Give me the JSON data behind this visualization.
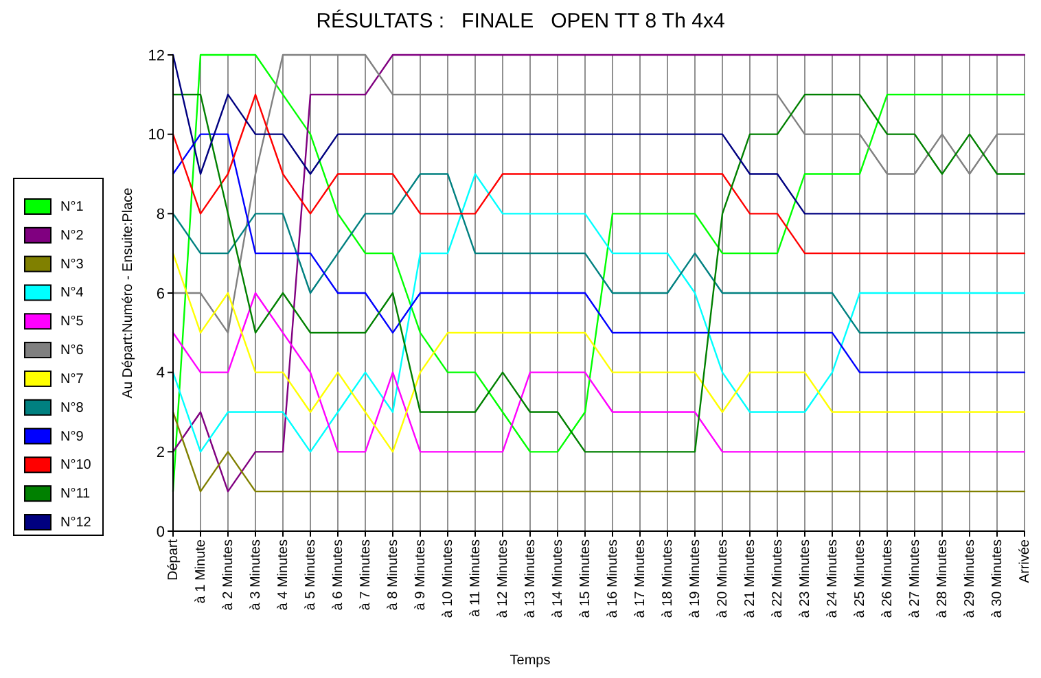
{
  "chart_data": {
    "type": "line",
    "title": "RÉSULTATS :   FINALE   OPEN TT 8 Th 4x4",
    "xlabel": "Temps",
    "ylabel": "Au Départ:Numéro - Ensuite:Place",
    "categories": [
      "Départ",
      "à 1 Minute",
      "à 2 Minutes",
      "à 3 Minutes",
      "à 4 Minutes",
      "à 5 Minutes",
      "à 6 Minutes",
      "à 7 Minutes",
      "à 8 Minutes",
      "à 9 Minutes",
      "à 10 Minutes",
      "à 11 Minutes",
      "à 12 Minutes",
      "à 13 Minutes",
      "à 14 Minutes",
      "à 15 Minutes",
      "à 16 Minutes",
      "à 17 Minutes",
      "à 18 Minutes",
      "à 19 Minutes",
      "à 20 Minutes",
      "à 21 Minutes",
      "à 22 Minutes",
      "à 23 Minutes",
      "à 24 Minutes",
      "à 25 Minutes",
      "à 26 Minutes",
      "à 27 Minutes",
      "à 28 Minutes",
      "à 29 Minutes",
      "à 30 Minutes",
      "Arrivée"
    ],
    "ylim": [
      0,
      12
    ],
    "yticks": [
      0,
      2,
      4,
      6,
      8,
      10,
      12
    ],
    "grid": "x",
    "legend": "left",
    "marker": "none",
    "line_style": "solid",
    "series": [
      {
        "name": "N°1",
        "color": "#00ff00",
        "values": [
          1,
          12,
          12,
          12,
          11,
          10,
          8,
          7,
          7,
          5,
          4,
          4,
          3,
          2,
          2,
          3,
          8,
          8,
          8,
          8,
          7,
          7,
          7,
          9,
          9,
          9,
          11,
          11,
          11,
          11,
          11,
          11
        ]
      },
      {
        "name": "N°2",
        "color": "#800080",
        "values": [
          2,
          3,
          1,
          2,
          2,
          11,
          11,
          11,
          12,
          12,
          12,
          12,
          12,
          12,
          12,
          12,
          12,
          12,
          12,
          12,
          12,
          12,
          12,
          12,
          12,
          12,
          12,
          12,
          12,
          12,
          12,
          12
        ]
      },
      {
        "name": "N°3",
        "color": "#808000",
        "values": [
          3,
          1,
          2,
          1,
          1,
          1,
          1,
          1,
          1,
          1,
          1,
          1,
          1,
          1,
          1,
          1,
          1,
          1,
          1,
          1,
          1,
          1,
          1,
          1,
          1,
          1,
          1,
          1,
          1,
          1,
          1,
          1
        ]
      },
      {
        "name": "N°4",
        "color": "#00ffff",
        "values": [
          4,
          2,
          3,
          3,
          3,
          2,
          3,
          4,
          3,
          7,
          7,
          9,
          8,
          8,
          8,
          8,
          7,
          7,
          7,
          6,
          4,
          3,
          3,
          3,
          4,
          6,
          6,
          6,
          6,
          6,
          6,
          6
        ]
      },
      {
        "name": "N°5",
        "color": "#ff00ff",
        "values": [
          5,
          4,
          4,
          6,
          5,
          4,
          2,
          2,
          4,
          2,
          2,
          2,
          2,
          4,
          4,
          4,
          3,
          3,
          3,
          3,
          2,
          2,
          2,
          2,
          2,
          2,
          2,
          2,
          2,
          2,
          2,
          2
        ]
      },
      {
        "name": "N°6",
        "color": "#808080",
        "values": [
          6,
          6,
          5,
          9,
          12,
          12,
          12,
          12,
          11,
          11,
          11,
          11,
          11,
          11,
          11,
          11,
          11,
          11,
          11,
          11,
          11,
          11,
          11,
          10,
          10,
          10,
          9,
          9,
          10,
          9,
          10,
          10
        ]
      },
      {
        "name": "N°7",
        "color": "#ffff00",
        "values": [
          7,
          5,
          6,
          4,
          4,
          3,
          4,
          3,
          2,
          4,
          5,
          5,
          5,
          5,
          5,
          5,
          4,
          4,
          4,
          4,
          3,
          4,
          4,
          4,
          3,
          3,
          3,
          3,
          3,
          3,
          3,
          3
        ]
      },
      {
        "name": "N°8",
        "color": "#008080",
        "values": [
          8,
          7,
          7,
          8,
          8,
          6,
          7,
          8,
          8,
          9,
          9,
          7,
          7,
          7,
          7,
          7,
          6,
          6,
          6,
          7,
          6,
          6,
          6,
          6,
          6,
          5,
          5,
          5,
          5,
          5,
          5,
          5
        ]
      },
      {
        "name": "N°9",
        "color": "#0000ff",
        "values": [
          9,
          10,
          10,
          7,
          7,
          7,
          6,
          6,
          5,
          6,
          6,
          6,
          6,
          6,
          6,
          6,
          5,
          5,
          5,
          5,
          5,
          5,
          5,
          5,
          5,
          4,
          4,
          4,
          4,
          4,
          4,
          4
        ]
      },
      {
        "name": "N°10",
        "color": "#ff0000",
        "values": [
          10,
          8,
          9,
          11,
          9,
          8,
          9,
          9,
          9,
          8,
          8,
          8,
          9,
          9,
          9,
          9,
          9,
          9,
          9,
          9,
          9,
          8,
          8,
          7,
          7,
          7,
          7,
          7,
          7,
          7,
          7,
          7
        ]
      },
      {
        "name": "N°11",
        "color": "#008000",
        "values": [
          11,
          11,
          8,
          5,
          6,
          5,
          5,
          5,
          6,
          3,
          3,
          3,
          4,
          3,
          3,
          2,
          2,
          2,
          2,
          2,
          8,
          10,
          10,
          11,
          11,
          11,
          10,
          10,
          9,
          10,
          9,
          9
        ]
      },
      {
        "name": "N°12",
        "color": "#000080",
        "values": [
          12,
          9,
          11,
          10,
          10,
          9,
          10,
          10,
          10,
          10,
          10,
          10,
          10,
          10,
          10,
          10,
          10,
          10,
          10,
          10,
          10,
          9,
          9,
          8,
          8,
          8,
          8,
          8,
          8,
          8,
          8,
          8
        ]
      }
    ]
  }
}
